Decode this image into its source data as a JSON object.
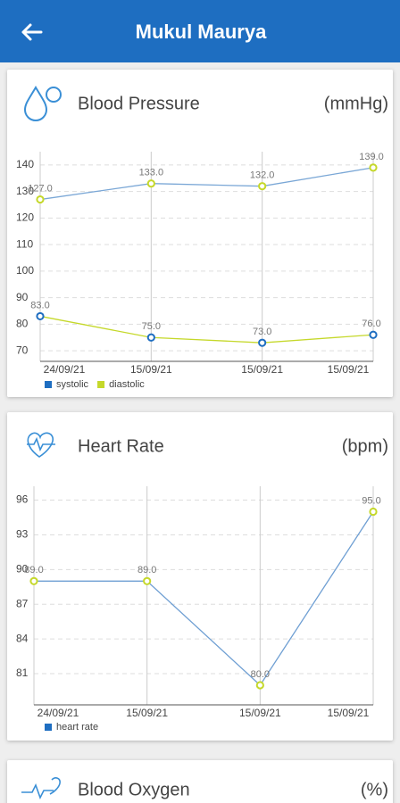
{
  "header": {
    "title": "Mukul Maurya"
  },
  "chart_data": [
    {
      "type": "line",
      "title": "Blood Pressure",
      "unit": "(mmHg)",
      "categories": [
        "24/09/21",
        "15/09/21",
        "15/09/21",
        "15/09/21"
      ],
      "series": [
        {
          "name": "systolic",
          "color": "#1e6ec1",
          "line_color": "#7aa7d6",
          "marker_color": "#c5d82a",
          "values": [
            127,
            133,
            132,
            139
          ],
          "value_labels": [
            "127.0",
            "133.0",
            "132.0",
            "139.0"
          ]
        },
        {
          "name": "diastolic",
          "color": "#c5d82a",
          "line_color": "#c5d82a",
          "marker_color": "#1e6ec1",
          "values": [
            83,
            75,
            73,
            76
          ],
          "value_labels": [
            "83.0",
            "75.0",
            "73.0",
            "76.0"
          ]
        }
      ],
      "ylim": [
        66,
        145
      ],
      "yticks": [
        70,
        80,
        90,
        100,
        110,
        120,
        130,
        140
      ],
      "grid": true
    },
    {
      "type": "line",
      "title": "Heart Rate",
      "unit": "(bpm)",
      "categories": [
        "24/09/21",
        "15/09/21",
        "15/09/21",
        "15/09/21"
      ],
      "series": [
        {
          "name": "heart rate",
          "color": "#1e6ec1",
          "line_color": "#6f9fd3",
          "marker_color": "#c5d82a",
          "values": [
            89,
            89,
            80,
            95
          ],
          "value_labels": [
            "89.0",
            "89.0",
            "80.0",
            "95.0"
          ]
        }
      ],
      "ylim": [
        78.3,
        97.2
      ],
      "yticks": [
        81,
        84,
        87,
        90,
        93,
        96
      ],
      "grid": true
    }
  ],
  "cards": [
    {
      "title": "Blood Oxygen",
      "unit": "(%)"
    }
  ]
}
